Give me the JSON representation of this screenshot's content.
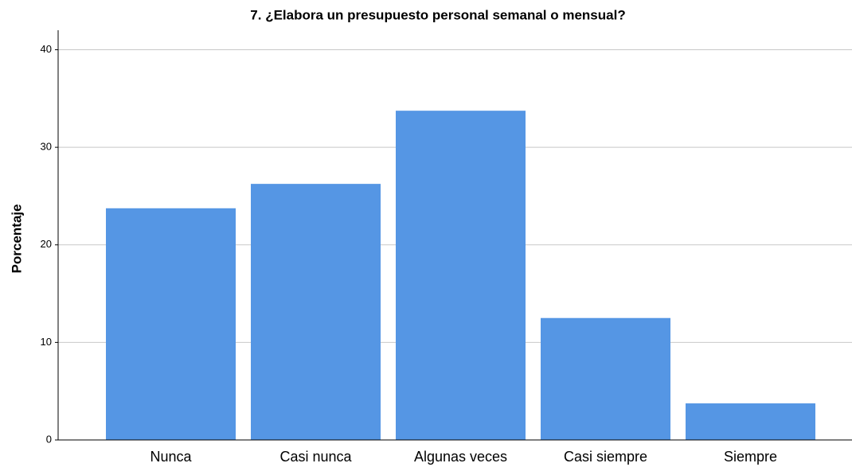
{
  "chart_data": {
    "type": "bar",
    "title": "7. ¿Elabora un presupuesto personal semanal o mensual?",
    "y_label": "Porcentaje",
    "categories": [
      "Nunca",
      "Casi nunca",
      "Algunas veces",
      "Casi siempre",
      "Siempre"
    ],
    "values": [
      23.75,
      26.25,
      33.75,
      12.5,
      3.75
    ],
    "color": "#5596e4",
    "ylim": [
      0,
      42
    ],
    "yticks": [
      0,
      10,
      20,
      30,
      40
    ],
    "grid": true
  }
}
